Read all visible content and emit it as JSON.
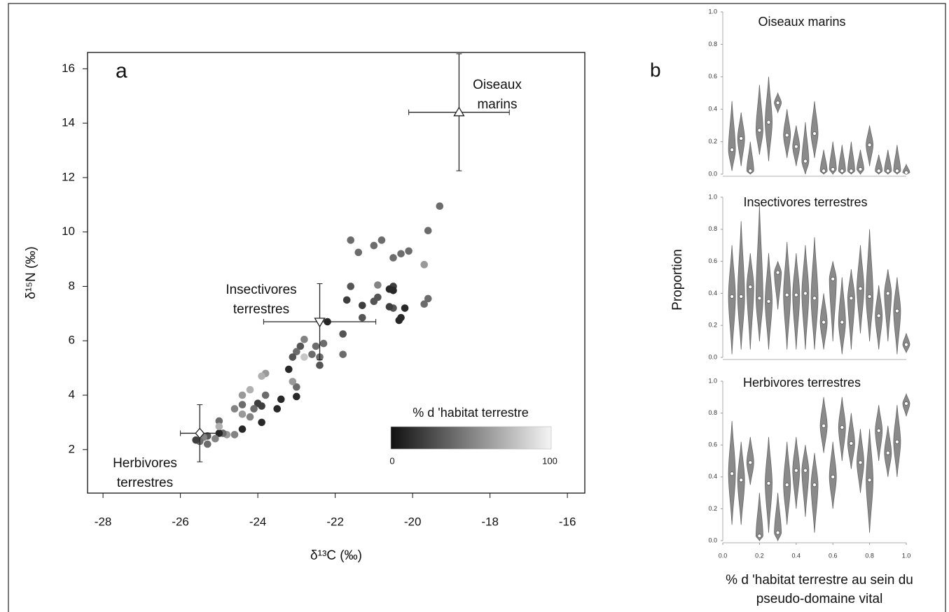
{
  "chart_data": [
    {
      "type": "scatter",
      "panel_label": "a",
      "xlabel": "δ¹³C (‰)",
      "ylabel": "δ¹⁵N (‰)",
      "xlim": [
        -28.4,
        -15.55
      ],
      "ylim": [
        0.4,
        16.6
      ],
      "xticks": [
        -28,
        -26,
        -24,
        -22,
        -20,
        -18,
        -16
      ],
      "yticks": [
        2,
        4,
        6,
        8,
        10,
        12,
        14,
        16
      ],
      "colorbar": {
        "title": "% d 'habitat terrestre",
        "clim": [
          0,
          100
        ],
        "ticks": [
          0,
          100
        ],
        "colors": [
          "#111111",
          "#f4f4f4"
        ]
      },
      "x": [
        -19.3,
        -19.6,
        -19.7,
        -19.6,
        -19.7,
        -20.1,
        -20.3,
        -20.5,
        -20.8,
        -21.0,
        -21.4,
        -21.6,
        -20.5,
        -20.5,
        -20.6,
        -20.9,
        -20.9,
        -21.0,
        -21.3,
        -21.3,
        -21.6,
        -20.2,
        -20.5,
        -20.6,
        -20.3,
        -20.35,
        -21.8,
        -21.8,
        -22.2,
        -22.5,
        -22.4,
        -22.4,
        -22.6,
        -22.9,
        -22.8,
        -22.8,
        -23.0,
        -23.1,
        -23.2,
        -23.0,
        -23.0,
        -23.1,
        -23.4,
        -23.5,
        -23.8,
        -23.9,
        -23.8,
        -23.9,
        -24.0,
        -24.1,
        -24.2,
        -23.9,
        -24.4,
        -24.4,
        -24.4,
        -24.4,
        -24.6,
        -24.8,
        -24.9,
        -25.0,
        -25.0,
        -25.0,
        -25.1,
        -25.3,
        -25.4,
        -25.5,
        -25.6,
        -25.3,
        -24.2,
        -22.3,
        -21.7,
        -24.6
      ],
      "y": [
        10.95,
        10.05,
        8.8,
        7.55,
        7.35,
        9.3,
        9.2,
        9.05,
        9.7,
        9.5,
        9.25,
        9.7,
        8.0,
        7.85,
        7.9,
        8.05,
        7.6,
        7.45,
        7.3,
        6.85,
        8.0,
        7.2,
        7.2,
        7.25,
        6.85,
        6.75,
        6.25,
        5.5,
        6.7,
        5.8,
        5.4,
        5.1,
        5.5,
        5.8,
        6.05,
        5.4,
        5.6,
        5.4,
        4.95,
        4.3,
        3.95,
        4.5,
        3.85,
        3.5,
        4.8,
        4.7,
        4.0,
        3.6,
        3.7,
        3.5,
        4.2,
        3.0,
        4.0,
        3.65,
        3.3,
        2.75,
        2.55,
        2.55,
        2.6,
        2.6,
        3.05,
        2.85,
        2.4,
        2.5,
        2.45,
        2.3,
        2.35,
        2.2,
        3.2,
        5.9,
        7.5,
        3.5
      ],
      "shade": [
        40,
        40,
        60,
        40,
        40,
        40,
        40,
        40,
        40,
        40,
        40,
        40,
        20,
        10,
        10,
        50,
        30,
        30,
        20,
        30,
        30,
        10,
        30,
        20,
        10,
        10,
        30,
        40,
        10,
        40,
        40,
        30,
        40,
        30,
        50,
        80,
        40,
        30,
        10,
        40,
        10,
        60,
        10,
        10,
        60,
        70,
        40,
        20,
        20,
        40,
        70,
        10,
        60,
        40,
        60,
        10,
        50,
        60,
        40,
        10,
        40,
        70,
        50,
        30,
        50,
        40,
        20,
        40,
        50,
        40,
        20,
        50
      ],
      "sources": [
        {
          "label_lines": [
            "Oiseaux",
            "marins"
          ],
          "marker": "triangle-up",
          "x": -18.8,
          "y": 14.4,
          "xerr": 1.3,
          "yerr": 2.15
        },
        {
          "label_lines": [
            "Insectivores",
            "terrestres"
          ],
          "marker": "triangle-down",
          "x": -22.4,
          "y": 6.7,
          "xerr": 1.45,
          "yerr": 1.4
        },
        {
          "label_lines": [
            "Herbivores",
            "terrestres"
          ],
          "marker": "diamond",
          "x": -25.5,
          "y": 2.6,
          "xerr": 0.5,
          "yerr": 1.05
        }
      ]
    },
    {
      "type": "violin",
      "panel_label": "b",
      "ylabel": "Proportion",
      "xlabel_lines": [
        "% d 'habitat terrestre au sein du",
        "pseudo-domaine vital"
      ],
      "xlim": [
        0,
        1
      ],
      "ylim": [
        0,
        1
      ],
      "color": "#8a8a8a",
      "xticks": [
        {
          "value": 0,
          "label": "0.0"
        },
        {
          "value": 0.2,
          "label": "0.2"
        },
        {
          "value": 0.4,
          "label": "0.4"
        },
        {
          "value": 0.6,
          "label": "0.6"
        },
        {
          "value": 0.8,
          "label": "0.8"
        },
        {
          "value": 1,
          "label": "1.0"
        }
      ],
      "yticks": [
        {
          "value": 0,
          "label": "0.0"
        },
        {
          "value": 0.2,
          "label": "0.2"
        },
        {
          "value": 0.4,
          "label": "0.4"
        },
        {
          "value": 0.6,
          "label": "0.6"
        },
        {
          "value": 0.8,
          "label": "0.8"
        },
        {
          "value": 1,
          "label": "1.0"
        }
      ],
      "x": [
        0.05,
        0.1,
        0.15,
        0.2,
        0.25,
        0.3,
        0.35,
        0.4,
        0.45,
        0.5,
        0.55,
        0.6,
        0.65,
        0.7,
        0.75,
        0.8,
        0.85,
        0.9,
        0.95,
        1.0
      ],
      "panels": [
        {
          "title": "Oiseaux marins",
          "medians": [
            0.15,
            0.22,
            0.02,
            0.27,
            0.32,
            0.44,
            0.24,
            0.17,
            0.08,
            0.25,
            0.02,
            0.03,
            0.02,
            0.02,
            0.03,
            0.18,
            0.02,
            0.02,
            0.02,
            0.01
          ],
          "lows": [
            0.02,
            0.05,
            0,
            0.12,
            0.08,
            0.38,
            0.1,
            0.05,
            0,
            0.1,
            0,
            0,
            0,
            0,
            0,
            0.05,
            0,
            0,
            0,
            0
          ],
          "highs": [
            0.45,
            0.38,
            0.2,
            0.55,
            0.6,
            0.5,
            0.4,
            0.3,
            0.32,
            0.45,
            0.15,
            0.2,
            0.18,
            0.2,
            0.15,
            0.3,
            0.12,
            0.15,
            0.18,
            0.06
          ]
        },
        {
          "title": "Insectivores terrestres",
          "medians": [
            0.38,
            0.38,
            0.44,
            0.37,
            0.35,
            0.53,
            0.39,
            0.39,
            0.4,
            0.37,
            0.22,
            0.49,
            0.22,
            0.37,
            0.43,
            0.38,
            0.26,
            0.4,
            0.29,
            0.08
          ],
          "lows": [
            0.02,
            0.05,
            0.05,
            0.1,
            0.05,
            0.3,
            0.05,
            0.05,
            0.05,
            0.05,
            0.05,
            0.1,
            0.02,
            0.05,
            0.15,
            0.1,
            0.05,
            0.1,
            0.02,
            0.03
          ],
          "highs": [
            0.7,
            0.85,
            0.65,
            0.95,
            0.65,
            0.6,
            0.72,
            0.65,
            0.7,
            0.75,
            0.4,
            0.6,
            0.5,
            0.55,
            0.7,
            0.8,
            0.45,
            0.55,
            0.5,
            0.15
          ]
        },
        {
          "title": "Herbivores terrestres",
          "medians": [
            0.42,
            0.38,
            0.49,
            0.03,
            0.36,
            0.05,
            0.35,
            0.44,
            0.44,
            0.35,
            0.72,
            0.4,
            0.71,
            0.61,
            0.49,
            0.38,
            0.69,
            0.55,
            0.62,
            0.86
          ],
          "lows": [
            0.1,
            0.1,
            0.35,
            0,
            0.05,
            0,
            0.1,
            0.2,
            0.15,
            0.05,
            0.55,
            0.2,
            0.5,
            0.45,
            0.3,
            0.05,
            0.5,
            0.4,
            0.4,
            0.78
          ],
          "highs": [
            0.75,
            0.62,
            0.65,
            0.3,
            0.65,
            0.3,
            0.62,
            0.65,
            0.6,
            0.55,
            0.9,
            0.62,
            0.9,
            0.8,
            0.7,
            0.7,
            0.85,
            0.72,
            0.85,
            0.92
          ]
        }
      ]
    }
  ]
}
